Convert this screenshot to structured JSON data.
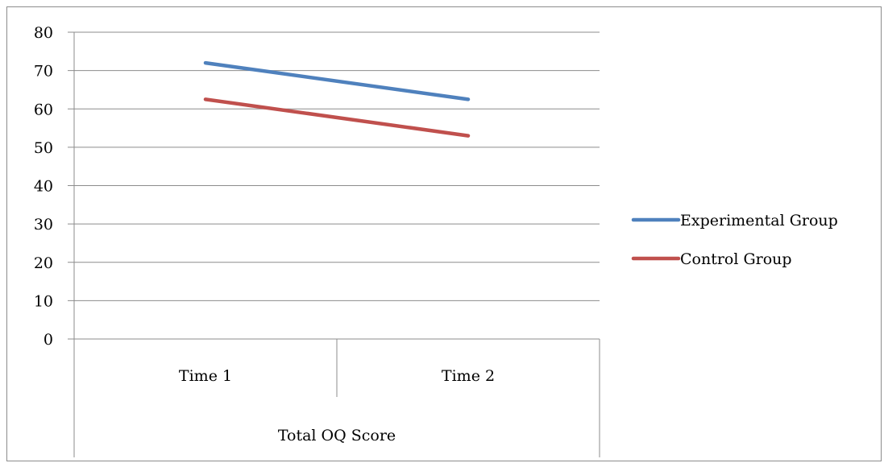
{
  "chart_data": {
    "type": "line",
    "title": "",
    "xlabel": "",
    "ylabel": "",
    "categories": [
      "Time 1",
      "Time 2"
    ],
    "category_group": "Total OQ Score",
    "ylim": [
      0,
      80
    ],
    "y_ticks": [
      "0",
      "10",
      "20",
      "30",
      "40",
      "50",
      "60",
      "70",
      "80"
    ],
    "grid": true,
    "legend_position": "right",
    "series": [
      {
        "name": "Experimental Group",
        "color": "#4f81bd",
        "values": [
          72,
          62.5
        ]
      },
      {
        "name": "Control Group",
        "color": "#c0504d",
        "values": [
          62.5,
          53
        ]
      }
    ]
  }
}
